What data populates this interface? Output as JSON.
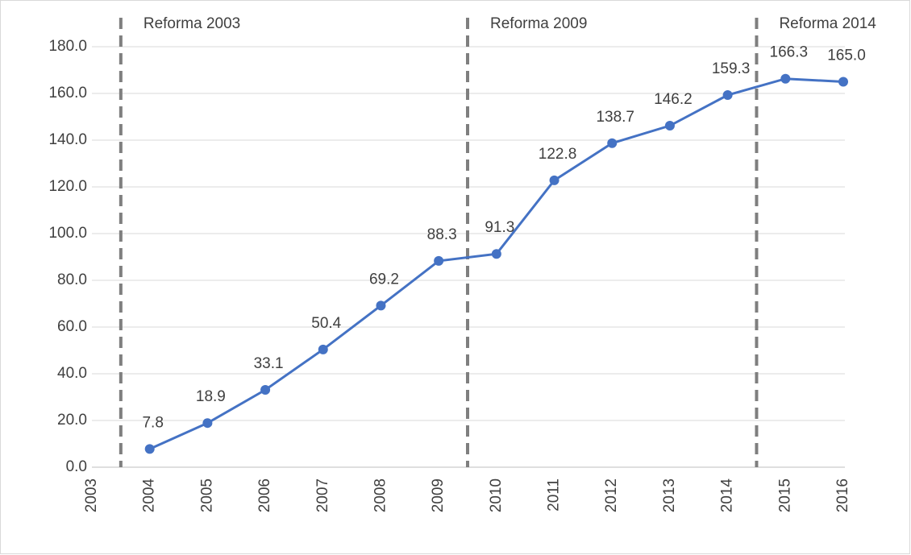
{
  "chart_data": {
    "type": "line",
    "categories": [
      "2003",
      "2004",
      "2005",
      "2006",
      "2007",
      "2008",
      "2009",
      "2010",
      "2011",
      "2012",
      "2013",
      "2014",
      "2015",
      "2016"
    ],
    "series": [
      {
        "color": "#4472c4",
        "values": [
          null,
          7.8,
          18.9,
          33.1,
          50.4,
          69.2,
          88.3,
          91.3,
          122.8,
          138.7,
          146.2,
          159.3,
          166.3,
          165.0
        ],
        "value_labels": [
          null,
          "7.8",
          "18.9",
          "33.1",
          "50.4",
          "69.2",
          "88.3",
          "91.3",
          "122.8",
          "138.7",
          "146.2",
          "159.3",
          "166.3",
          "165.0"
        ]
      }
    ],
    "ylim": [
      0,
      180
    ],
    "yticks": [
      {
        "value": 0,
        "label": "0.0"
      },
      {
        "value": 20,
        "label": "20.0"
      },
      {
        "value": 40,
        "label": "40.0"
      },
      {
        "value": 60,
        "label": "60.0"
      },
      {
        "value": 80,
        "label": "80.0"
      },
      {
        "value": 100,
        "label": "100.0"
      },
      {
        "value": 120,
        "label": "120.0"
      },
      {
        "value": 140,
        "label": "140.0"
      },
      {
        "value": 160,
        "label": "160.0"
      },
      {
        "value": 180,
        "label": "180.0"
      }
    ],
    "grid": true,
    "annotations": [
      {
        "text": "Reforma 2003",
        "x": 0.5
      },
      {
        "text": "Reforma 2009",
        "x": 6.5
      },
      {
        "text": "Reforma 2014",
        "x": 11.5
      }
    ]
  }
}
